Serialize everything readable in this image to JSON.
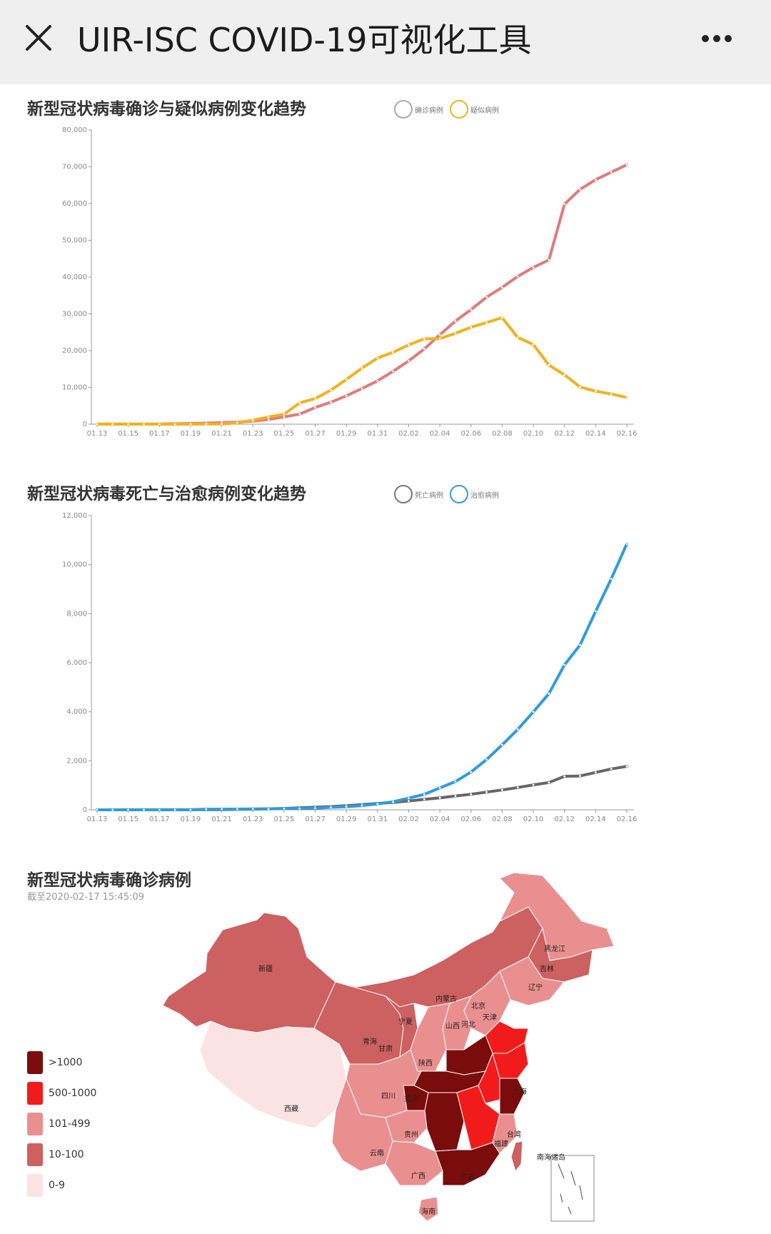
{
  "header": {
    "title": "UIR-ISC COVID-19可视化工具"
  },
  "icons": {
    "close": "close-icon",
    "more": "more-icon"
  },
  "colors": {
    "confirmed": "#e07b7b",
    "suspected": "#f0b21e",
    "deaths": "#666666",
    "recovered": "#2f9be0"
  },
  "chart1": {
    "title": "新型冠状病毒确诊与疑似病例变化趋势",
    "legend": [
      "确诊病例",
      "疑似病例"
    ]
  },
  "chart2": {
    "title": "新型冠状病毒死亡与治愈病例变化趋势",
    "legend": [
      "死亡病例",
      "治愈病例"
    ]
  },
  "chart_data": [
    {
      "type": "line",
      "title": "新型冠状病毒确诊与疑似病例变化趋势",
      "x": [
        "01.13",
        "01.14",
        "01.15",
        "01.16",
        "01.17",
        "01.18",
        "01.19",
        "01.20",
        "01.21",
        "01.22",
        "01.23",
        "01.24",
        "01.25",
        "01.26",
        "01.27",
        "01.28",
        "01.29",
        "01.30",
        "01.31",
        "02.01",
        "02.02",
        "02.03",
        "02.04",
        "02.05",
        "02.06",
        "02.07",
        "02.08",
        "02.09",
        "02.10",
        "02.11",
        "02.12",
        "02.13",
        "02.14",
        "02.15",
        "02.16"
      ],
      "xticks": [
        "01.13",
        "01.15",
        "01.17",
        "01.19",
        "01.21",
        "01.23",
        "01.25",
        "01.27",
        "01.29",
        "01.31",
        "02.02",
        "02.04",
        "02.06",
        "02.08",
        "02.10",
        "02.12",
        "02.14",
        "02.16"
      ],
      "yticks": [
        "0",
        "10,000",
        "20,000",
        "30,000",
        "40,000",
        "50,000",
        "60,000",
        "70,000",
        "80,000"
      ],
      "ylim": [
        0,
        80000
      ],
      "series": [
        {
          "name": "确诊病例",
          "color": "#e07b7b",
          "values": [
            41,
            41,
            41,
            45,
            62,
            121,
            198,
            291,
            440,
            571,
            830,
            1287,
            1975,
            2744,
            4515,
            5974,
            7711,
            9692,
            11791,
            14380,
            17205,
            20438,
            24324,
            28018,
            31161,
            34546,
            37198,
            40171,
            42638,
            44653,
            59804,
            63851,
            66492,
            68500,
            70548
          ]
        },
        {
          "name": "疑似病例",
          "color": "#f0b21e",
          "values": [
            0,
            0,
            0,
            0,
            0,
            0,
            0,
            54,
            37,
            393,
            1072,
            1965,
            2684,
            5794,
            6973,
            9239,
            12167,
            15238,
            17988,
            19544,
            21558,
            23214,
            23260,
            24702,
            26359,
            27657,
            28942,
            23589,
            21675,
            16067,
            13435,
            10109,
            8969,
            8228,
            7264
          ]
        }
      ]
    },
    {
      "type": "line",
      "title": "新型冠状病毒死亡与治愈病例变化趋势",
      "x": [
        "01.13",
        "01.14",
        "01.15",
        "01.16",
        "01.17",
        "01.18",
        "01.19",
        "01.20",
        "01.21",
        "01.22",
        "01.23",
        "01.24",
        "01.25",
        "01.26",
        "01.27",
        "01.28",
        "01.29",
        "01.30",
        "01.31",
        "02.01",
        "02.02",
        "02.03",
        "02.04",
        "02.05",
        "02.06",
        "02.07",
        "02.08",
        "02.09",
        "02.10",
        "02.11",
        "02.12",
        "02.13",
        "02.14",
        "02.15",
        "02.16"
      ],
      "xticks": [
        "01.13",
        "01.15",
        "01.17",
        "01.19",
        "01.21",
        "01.23",
        "01.25",
        "01.27",
        "01.29",
        "01.31",
        "02.02",
        "02.04",
        "02.06",
        "02.08",
        "02.10",
        "02.12",
        "02.14",
        "02.16"
      ],
      "yticks": [
        "0",
        "2,000",
        "4,000",
        "6,000",
        "8,000",
        "10,000",
        "12,000"
      ],
      "ylim": [
        0,
        12000
      ],
      "series": [
        {
          "name": "死亡病例",
          "color": "#666666",
          "values": [
            1,
            1,
            2,
            2,
            2,
            3,
            4,
            6,
            9,
            17,
            25,
            41,
            56,
            80,
            106,
            132,
            170,
            213,
            259,
            304,
            361,
            425,
            490,
            563,
            636,
            722,
            811,
            908,
            1016,
            1113,
            1367,
            1380,
            1523,
            1665,
            1770
          ]
        },
        {
          "name": "治愈病例",
          "color": "#2f9be0",
          "values": [
            0,
            0,
            0,
            0,
            0,
            0,
            0,
            25,
            25,
            28,
            34,
            38,
            49,
            51,
            60,
            103,
            124,
            171,
            243,
            328,
            475,
            632,
            892,
            1153,
            1540,
            2050,
            2649,
            3281,
            3996,
            4740,
            5911,
            6723,
            8096,
            9419,
            10844
          ]
        }
      ]
    }
  ],
  "map": {
    "title": "新型冠状病毒确诊病例",
    "subtitle": "截至2020-02-17 15:45:09",
    "legend": [
      {
        "label": ">1000",
        "color": "#7a0c0c"
      },
      {
        "label": "500-1000",
        "color": "#f21b1b"
      },
      {
        "label": "101-499",
        "color": "#ea8f8f"
      },
      {
        "label": "10-100",
        "color": "#cd6060"
      },
      {
        "label": "0-9",
        "color": "#fbe3e3"
      }
    ],
    "labels": {
      "xinjiang": "新疆",
      "xizang": "西藏",
      "qinghai": "青海",
      "gansu": "甘肃",
      "neimenggu": "内蒙古",
      "ningxia": "宁夏",
      "heilongjiang": "黑龙江",
      "jilin": "吉林",
      "liaoning": "辽宁",
      "beijing": "北京",
      "tianjin": "天津",
      "hebei": "河北",
      "shanxi": "山西",
      "shaanxi": "陕西",
      "sichuan": "四川",
      "chongqing": "重庆",
      "guizhou": "贵州",
      "yunnan": "云南",
      "guangxi": "广西",
      "guangdong": "广东",
      "hainan": "海南",
      "fujian": "福建",
      "taiwan": "台湾",
      "shanghai": "上海",
      "nanhai": "南海诸岛"
    }
  }
}
